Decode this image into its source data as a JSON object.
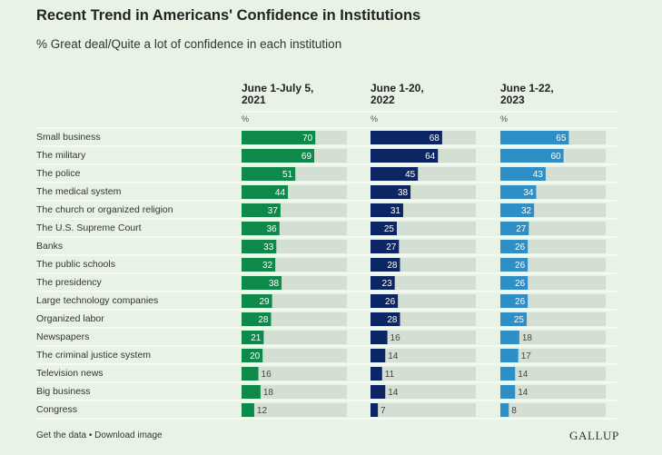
{
  "chart_data": {
    "type": "bar",
    "title": "Recent Trend in Americans' Confidence in Institutions",
    "subtitle": "% Great deal/Quite a lot of confidence in each institution",
    "categories": [
      "Small business",
      "The military",
      "The police",
      "The medical system",
      "The church or organized religion",
      "The U.S. Supreme Court",
      "Banks",
      "The public schools",
      "The presidency",
      "Large technology companies",
      "Organized labor",
      "Newspapers",
      "The criminal justice system",
      "Television news",
      "Big business",
      "Congress"
    ],
    "unit_label": "%",
    "xlim": [
      0,
      100
    ],
    "series": [
      {
        "name": "June 1-July 5, 2021",
        "name_lines": [
          "June 1-July 5,",
          "2021"
        ],
        "color": "#0d8a4a",
        "values": [
          70,
          69,
          51,
          44,
          37,
          36,
          33,
          32,
          38,
          29,
          28,
          21,
          20,
          16,
          18,
          12
        ]
      },
      {
        "name": "June 1-20, 2022",
        "name_lines": [
          "June 1-20,",
          "2022"
        ],
        "color": "#0c2563",
        "values": [
          68,
          64,
          45,
          38,
          31,
          25,
          27,
          28,
          23,
          26,
          28,
          16,
          14,
          11,
          14,
          7
        ]
      },
      {
        "name": "June 1-22, 2023",
        "name_lines": [
          "June 1-22,",
          "2023"
        ],
        "color": "#2e8fc6",
        "values": [
          65,
          60,
          43,
          34,
          32,
          27,
          26,
          26,
          26,
          26,
          25,
          18,
          17,
          14,
          14,
          8
        ]
      }
    ],
    "track_color": "#d4dfd3"
  },
  "footer": {
    "get_data": "Get the data",
    "separator": " • ",
    "download": "Download image",
    "brand": "GALLUP"
  }
}
